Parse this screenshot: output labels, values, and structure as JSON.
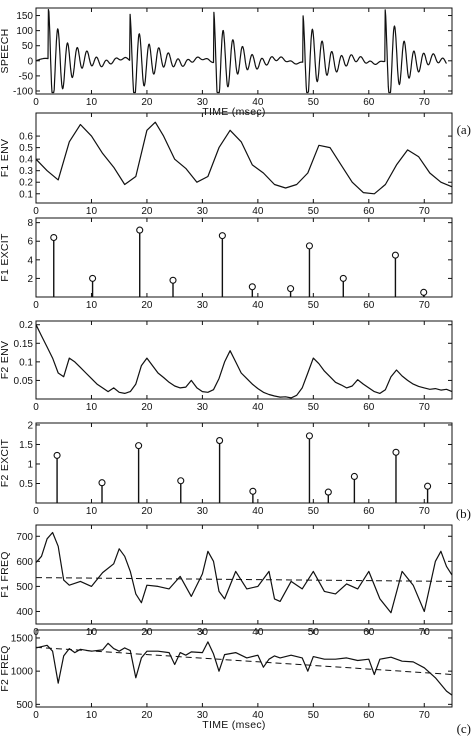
{
  "panel_labels": [
    "(a)",
    "(b)",
    "(c)"
  ],
  "chart_data": [
    {
      "type": "line",
      "ylabel": "SPEECH",
      "xlabel": "TIME (msec)",
      "xlim": [
        0,
        75
      ],
      "ylim": [
        -110,
        175
      ],
      "xticks": [
        0,
        10,
        20,
        30,
        40,
        50,
        60,
        70
      ],
      "yticks": [
        -100,
        -50,
        0,
        50,
        100,
        150
      ],
      "pulses": [
        2.8,
        17.5,
        32.6,
        48.7,
        63.5
      ],
      "series": [
        {
          "x": [
            0,
            75
          ],
          "y": [
            0,
            0
          ]
        }
      ]
    },
    {
      "type": "line",
      "ylabel": "F1 ENV",
      "xlim": [
        0,
        75
      ],
      "ylim": [
        0.02,
        0.8
      ],
      "xticks": [
        0,
        10,
        20,
        30,
        40,
        50,
        60,
        70
      ],
      "yticks": [
        0.1,
        0.2,
        0.3,
        0.4,
        0.5,
        0.6
      ],
      "series": [
        {
          "x": [
            0,
            2,
            4,
            6,
            8,
            10,
            12,
            14,
            16,
            18,
            20,
            21.5,
            23,
            25,
            27,
            29,
            31,
            33,
            35,
            37,
            39,
            41,
            43,
            45,
            47,
            49,
            51,
            53,
            55,
            57,
            59,
            61,
            63,
            65,
            67,
            69,
            71,
            73,
            75
          ],
          "y": [
            0.4,
            0.3,
            0.22,
            0.55,
            0.7,
            0.6,
            0.45,
            0.33,
            0.18,
            0.25,
            0.65,
            0.72,
            0.6,
            0.4,
            0.32,
            0.2,
            0.25,
            0.5,
            0.65,
            0.55,
            0.35,
            0.28,
            0.18,
            0.15,
            0.18,
            0.28,
            0.52,
            0.5,
            0.35,
            0.2,
            0.11,
            0.1,
            0.18,
            0.35,
            0.48,
            0.42,
            0.28,
            0.2,
            0.16
          ]
        }
      ]
    },
    {
      "type": "stem",
      "ylabel": "F1 EXCIT",
      "xlim": [
        0,
        75
      ],
      "ylim": [
        0,
        8.5
      ],
      "xticks": [
        0,
        10,
        20,
        30,
        40,
        50,
        60,
        70
      ],
      "yticks": [
        2,
        4,
        6,
        8
      ],
      "x": [
        3.2,
        10.2,
        18.7,
        24.7,
        33.6,
        39,
        45.9,
        49.3,
        55.4,
        64.8,
        69.9
      ],
      "y": [
        6.4,
        2.0,
        7.2,
        1.8,
        6.6,
        1.1,
        0.9,
        5.5,
        2.0,
        4.5,
        0.5
      ]
    },
    {
      "type": "line",
      "ylabel": "F2 ENV",
      "xlim": [
        0,
        75
      ],
      "ylim": [
        0,
        0.21
      ],
      "xticks": [
        0,
        10,
        20,
        30,
        40,
        50,
        60,
        70
      ],
      "yticks": [
        0.05,
        0.1,
        0.15,
        0.2
      ],
      "series": [
        {
          "x": [
            0,
            1,
            2,
            3,
            4,
            5,
            6,
            7,
            8,
            9,
            10,
            11,
            12,
            13,
            14,
            15,
            16,
            17,
            18,
            19,
            20,
            21,
            22,
            23,
            24,
            25,
            26,
            27,
            28,
            29,
            30,
            31,
            32,
            33,
            34,
            35,
            36,
            37,
            38,
            39,
            40,
            41,
            42,
            43,
            44,
            45,
            46,
            47,
            48,
            49,
            50,
            51,
            52,
            53,
            54,
            55,
            56,
            57,
            58,
            59,
            60,
            61,
            62,
            63,
            64,
            65,
            66,
            67,
            68,
            69,
            70,
            71,
            72,
            73,
            74,
            75
          ],
          "y": [
            0.2,
            0.17,
            0.14,
            0.11,
            0.07,
            0.06,
            0.11,
            0.1,
            0.085,
            0.07,
            0.055,
            0.04,
            0.03,
            0.02,
            0.03,
            0.018,
            0.015,
            0.02,
            0.04,
            0.09,
            0.11,
            0.09,
            0.07,
            0.058,
            0.045,
            0.035,
            0.03,
            0.032,
            0.05,
            0.03,
            0.02,
            0.018,
            0.025,
            0.055,
            0.1,
            0.13,
            0.1,
            0.07,
            0.055,
            0.04,
            0.028,
            0.018,
            0.012,
            0.008,
            0.005,
            0.006,
            0.003,
            0.01,
            0.03,
            0.07,
            0.11,
            0.095,
            0.075,
            0.06,
            0.045,
            0.038,
            0.03,
            0.035,
            0.052,
            0.04,
            0.03,
            0.02,
            0.015,
            0.025,
            0.06,
            0.078,
            0.062,
            0.05,
            0.04,
            0.034,
            0.03,
            0.026,
            0.028,
            0.024,
            0.026,
            0.02
          ]
        }
      ]
    },
    {
      "type": "stem",
      "ylabel": "F2 EXCIT",
      "xlim": [
        0,
        75
      ],
      "ylim": [
        0,
        2.05
      ],
      "xticks": [
        0,
        10,
        20,
        30,
        40,
        50,
        60,
        70
      ],
      "yticks": [
        0.5,
        1,
        1.5,
        2
      ],
      "x": [
        3.8,
        11.9,
        18.5,
        26.1,
        33.1,
        39.1,
        49.3,
        52.7,
        57.4,
        64.9,
        70.6
      ],
      "y": [
        1.22,
        0.52,
        1.47,
        0.57,
        1.6,
        0.3,
        1.72,
        0.28,
        0.68,
        1.3,
        0.43
      ]
    },
    {
      "type": "line",
      "ylabel": "F1 FREQ",
      "xlim": [
        0,
        75
      ],
      "ylim": [
        350,
        745
      ],
      "xticks": [
        0,
        10,
        20,
        30,
        40,
        50,
        60,
        70
      ],
      "yticks": [
        400,
        500,
        600,
        700
      ],
      "series": [
        {
          "x": [
            0,
            1,
            2,
            3,
            4,
            5,
            6,
            8,
            10,
            12,
            14,
            15,
            16,
            17,
            18,
            19,
            20,
            22,
            24,
            26,
            28,
            30,
            31,
            32,
            33,
            34,
            36,
            38,
            40,
            42,
            43,
            44,
            46,
            48,
            50,
            52,
            54,
            56,
            58,
            60,
            62,
            64,
            66,
            68,
            70,
            72,
            73,
            74,
            75
          ],
          "y": [
            595,
            620,
            690,
            715,
            660,
            525,
            505,
            520,
            500,
            555,
            590,
            650,
            620,
            560,
            470,
            435,
            505,
            500,
            490,
            540,
            460,
            550,
            640,
            600,
            480,
            450,
            560,
            490,
            500,
            560,
            450,
            440,
            520,
            490,
            560,
            480,
            470,
            510,
            490,
            560,
            450,
            395,
            560,
            505,
            400,
            600,
            640,
            580,
            545
          ]
        },
        {
          "x": [
            0,
            75
          ],
          "y": [
            535,
            520
          ],
          "style": "dashed"
        }
      ]
    },
    {
      "type": "line",
      "ylabel": "F2 FREQ",
      "xlabel": "TIME (msec)",
      "xlim": [
        0,
        75
      ],
      "ylim": [
        460,
        1620
      ],
      "xticks": [
        0,
        10,
        20,
        30,
        40,
        50,
        60,
        70
      ],
      "yticks": [
        500,
        1000,
        1500
      ],
      "series": [
        {
          "x": [
            0,
            2,
            3,
            4,
            5,
            6,
            7,
            8,
            10,
            12,
            13,
            14,
            15,
            16,
            17,
            18,
            19,
            20,
            22,
            24,
            25,
            26,
            27,
            28,
            30,
            31,
            32,
            33,
            34,
            36,
            38,
            40,
            41,
            42,
            43,
            44,
            46,
            48,
            49,
            50,
            52,
            54,
            56,
            58,
            60,
            61,
            62,
            64,
            66,
            68,
            70,
            72,
            74,
            75
          ],
          "y": [
            1350,
            1390,
            1300,
            820,
            1230,
            1340,
            1280,
            1330,
            1300,
            1320,
            1420,
            1340,
            1300,
            1350,
            1310,
            900,
            1200,
            1300,
            1300,
            1280,
            1100,
            1280,
            1240,
            1290,
            1280,
            1440,
            1260,
            1000,
            1250,
            1280,
            1200,
            1240,
            1060,
            1180,
            1230,
            1200,
            1240,
            1200,
            1000,
            1220,
            1180,
            1180,
            1200,
            1160,
            1180,
            950,
            1180,
            1210,
            1150,
            1140,
            1050,
            900,
            700,
            640
          ]
        },
        {
          "x": [
            0,
            75
          ],
          "y": [
            1360,
            950
          ],
          "style": "dashed"
        }
      ]
    }
  ]
}
